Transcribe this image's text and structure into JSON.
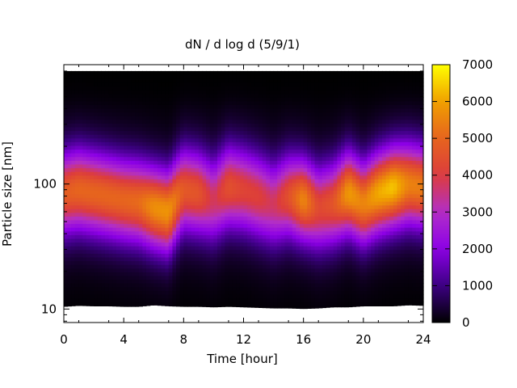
{
  "chart_data": {
    "type": "heatmap",
    "title": "dN / d log d (5/9/1)",
    "xlabel": "Time [hour]",
    "ylabel": "Particle size [nm]",
    "xlim": [
      0,
      24
    ],
    "x_ticks": [
      0,
      4,
      8,
      12,
      16,
      20,
      24
    ],
    "x_tick_labels": [
      "0",
      "4",
      "8",
      "12",
      "16",
      "20",
      "24"
    ],
    "ylim": [
      7.8,
      900
    ],
    "y_scale": "log",
    "y_ticks": [
      10,
      100
    ],
    "y_tick_labels": [
      "10",
      "100"
    ],
    "colorbar": {
      "range": [
        0,
        7000
      ],
      "ticks": [
        0,
        1000,
        2000,
        3000,
        4000,
        5000,
        6000,
        7000
      ],
      "tick_labels": [
        "0",
        "1000",
        "2000",
        "3000",
        "4000",
        "5000",
        "6000",
        "7000"
      ],
      "palette": [
        "#000000",
        "#3c0082",
        "#8c00e6",
        "#b22ec8",
        "#dc3c3c",
        "#e6641e",
        "#f0a000",
        "#ffff00"
      ]
    },
    "peak_profile": {
      "center_nm": [
        85,
        90,
        85,
        80,
        75,
        72,
        65,
        60,
        90,
        85,
        75,
        95,
        90,
        80,
        70,
        80,
        75,
        65,
        70,
        85,
        70,
        85,
        95,
        100,
        95
      ],
      "amplitude": [
        4100,
        4300,
        4300,
        4300,
        4300,
        4400,
        5000,
        5100,
        4000,
        3900,
        3000,
        3800,
        3500,
        3400,
        3000,
        3800,
        4900,
        3600,
        3900,
        5200,
        4800,
        5400,
        5700,
        4800,
        4700
      ]
    },
    "min_size_nm": [
      10.5,
      10.7,
      10.6,
      10.6,
      10.5,
      10.5,
      10.8,
      10.6,
      10.5,
      10.5,
      10.4,
      10.5,
      10.4,
      10.3,
      10.2,
      10.2,
      10.1,
      10.2,
      10.4,
      10.4,
      10.6,
      10.6,
      10.6,
      10.8,
      10.7
    ],
    "max_size_nm": 800,
    "grid": false
  }
}
